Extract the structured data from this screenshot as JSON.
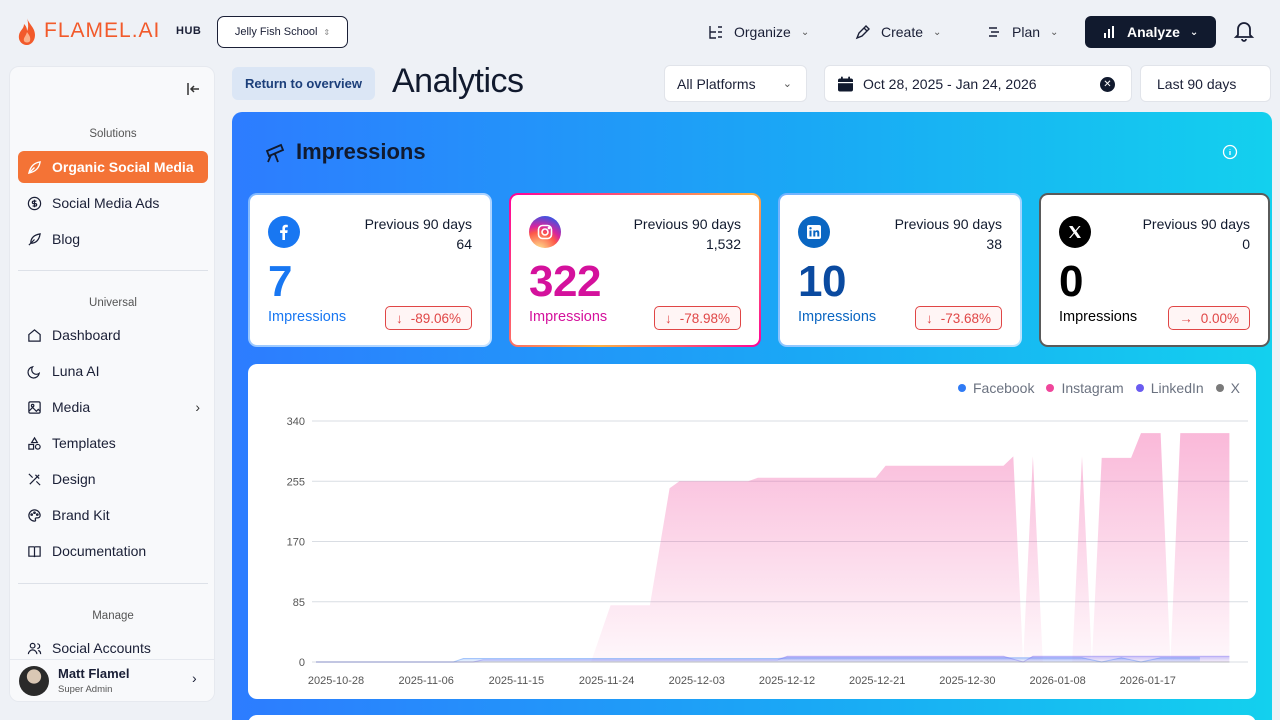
{
  "brand": {
    "name": "FLAMEL.AI",
    "hub": "HUB",
    "accent": "#f25a2b"
  },
  "workspace": {
    "name": "Jelly Fish School"
  },
  "nav": [
    {
      "label": "Organize",
      "icon": "organize-icon"
    },
    {
      "label": "Create",
      "icon": "pen-icon"
    },
    {
      "label": "Plan",
      "icon": "plan-icon"
    },
    {
      "label": "Analyze",
      "icon": "bar-chart-icon",
      "active": true
    }
  ],
  "sidebar": {
    "solutions_title": "Solutions",
    "solutions": [
      {
        "label": "Organic Social Media",
        "icon": "leaf-icon",
        "active": true
      },
      {
        "label": "Social Media Ads",
        "icon": "dollar-icon"
      },
      {
        "label": "Blog",
        "icon": "feather-icon"
      }
    ],
    "universal_title": "Universal",
    "universal": [
      {
        "label": "Dashboard",
        "icon": "home-icon"
      },
      {
        "label": "Luna AI",
        "icon": "moon-icon"
      },
      {
        "label": "Media",
        "icon": "image-icon",
        "has_submenu": true
      },
      {
        "label": "Templates",
        "icon": "shapes-icon"
      },
      {
        "label": "Design",
        "icon": "design-icon"
      },
      {
        "label": "Brand Kit",
        "icon": "palette-icon"
      },
      {
        "label": "Documentation",
        "icon": "book-icon"
      }
    ],
    "manage_title": "Manage",
    "manage": [
      {
        "label": "Social Accounts",
        "icon": "users-icon"
      }
    ],
    "user": {
      "name": "Matt Flamel",
      "role": "Super Admin"
    }
  },
  "header": {
    "return_label": "Return to overview",
    "title": "Analytics",
    "platform_filter": "All Platforms",
    "date_range": "Oct 28, 2025 - Jan 24, 2026",
    "range_preset": "Last 90 days"
  },
  "panel": {
    "title": "Impressions",
    "cards": [
      {
        "platform": "Facebook",
        "value": "7",
        "label": "Impressions",
        "prev_label": "Previous 90 days",
        "prev_value": "64",
        "change": "-89.06%",
        "direction": "down",
        "color": "#1877f2"
      },
      {
        "platform": "Instagram",
        "value": "322",
        "label": "Impressions",
        "prev_label": "Previous 90 days",
        "prev_value": "1,532",
        "change": "-78.98%",
        "direction": "down",
        "color": "#d4119c"
      },
      {
        "platform": "LinkedIn",
        "value": "10",
        "label": "Impressions",
        "prev_label": "Previous 90 days",
        "prev_value": "38",
        "change": "-73.68%",
        "direction": "down",
        "color": "#0a66c2"
      },
      {
        "platform": "X",
        "value": "0",
        "label": "Impressions",
        "prev_label": "Previous 90 days",
        "prev_value": "0",
        "change": "0.00%",
        "direction": "flat",
        "color": "#000000"
      }
    ]
  },
  "chart_data": {
    "type": "area",
    "title": "",
    "xlabel": "",
    "ylabel": "",
    "ylim": [
      0,
      340
    ],
    "yticks": [
      0,
      85,
      170,
      255,
      340
    ],
    "xticks": [
      "2025-10-28",
      "2025-11-06",
      "2025-11-15",
      "2025-11-24",
      "2025-12-03",
      "2025-12-12",
      "2025-12-21",
      "2025-12-30",
      "2026-01-08",
      "2026-01-17"
    ],
    "grid": true,
    "legend_position": "top-right",
    "series": [
      {
        "name": "Facebook",
        "color": "#2f7bf5",
        "values": [
          [
            0,
            0
          ],
          [
            14,
            0
          ],
          [
            15,
            5
          ],
          [
            30,
            5
          ],
          [
            38,
            5
          ],
          [
            47,
            5
          ],
          [
            48,
            6
          ],
          [
            60,
            6
          ],
          [
            70,
            6
          ],
          [
            71,
            6
          ],
          [
            78,
            6
          ],
          [
            80,
            0
          ],
          [
            82,
            6
          ],
          [
            84,
            0
          ],
          [
            86,
            6
          ],
          [
            90,
            6
          ]
        ]
      },
      {
        "name": "Instagram",
        "color": "#f0469b",
        "values": [
          [
            0,
            0
          ],
          [
            28,
            0
          ],
          [
            30,
            80
          ],
          [
            34,
            80
          ],
          [
            36,
            245
          ],
          [
            37,
            255
          ],
          [
            44,
            255
          ],
          [
            45,
            260
          ],
          [
            57,
            260
          ],
          [
            58,
            277
          ],
          [
            70,
            277
          ],
          [
            71,
            290
          ],
          [
            72,
            0
          ],
          [
            73,
            290
          ],
          [
            74,
            0
          ],
          [
            77,
            0
          ],
          [
            78,
            290
          ],
          [
            79,
            0
          ],
          [
            80,
            288
          ],
          [
            83,
            288
          ],
          [
            84,
            323
          ],
          [
            86,
            323
          ],
          [
            87,
            0
          ],
          [
            88,
            323
          ],
          [
            93,
            323
          ]
        ]
      },
      {
        "name": "LinkedIn",
        "color": "#6a5cf0",
        "values": [
          [
            0,
            0
          ],
          [
            16,
            0
          ],
          [
            17,
            3
          ],
          [
            30,
            3
          ],
          [
            47,
            3
          ],
          [
            48,
            8
          ],
          [
            70,
            8
          ],
          [
            72,
            0
          ],
          [
            73,
            8
          ],
          [
            93,
            8
          ]
        ]
      },
      {
        "name": "X",
        "color": "#7a7a7a",
        "values": [
          [
            0,
            0
          ],
          [
            93,
            0
          ]
        ]
      }
    ]
  }
}
